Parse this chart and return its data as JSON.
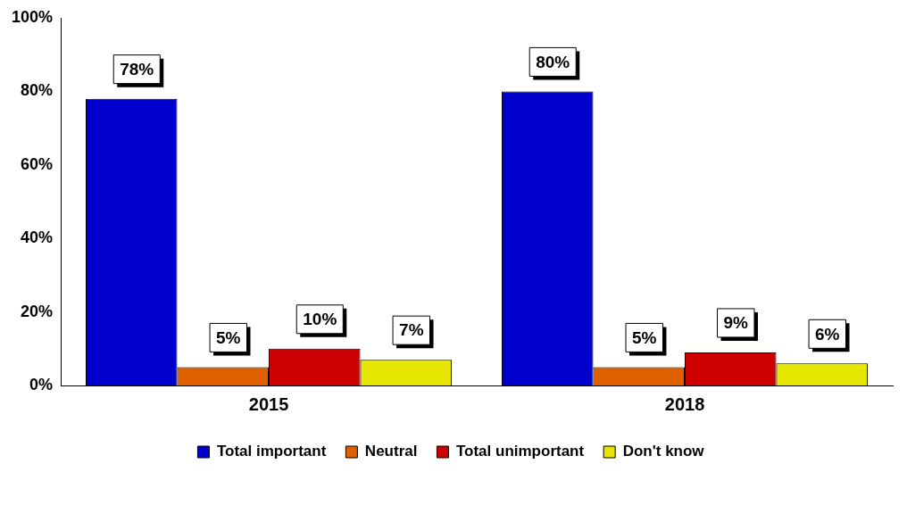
{
  "chart_data": {
    "type": "bar",
    "categories": [
      "2015",
      "2018"
    ],
    "series": [
      {
        "name": "Total important",
        "color": "#0000cc",
        "values": [
          78,
          80
        ],
        "value_labels": [
          "78%",
          "80%"
        ]
      },
      {
        "name": "Neutral",
        "color": "#e06000",
        "values": [
          5,
          5
        ],
        "value_labels": [
          "5%",
          "5%"
        ]
      },
      {
        "name": "Total unimportant",
        "color": "#cc0000",
        "values": [
          10,
          9
        ],
        "value_labels": [
          "10%",
          "9%"
        ]
      },
      {
        "name": "Don't know",
        "color": "#e6e600",
        "values": [
          7,
          6
        ],
        "value_labels": [
          "7%",
          "6%"
        ]
      }
    ],
    "ylim": [
      0,
      100
    ],
    "yticks": [
      {
        "value": 0,
        "label": "0%"
      },
      {
        "value": 20,
        "label": "20%"
      },
      {
        "value": 40,
        "label": "40%"
      },
      {
        "value": 60,
        "label": "60%"
      },
      {
        "value": 80,
        "label": "80%"
      },
      {
        "value": 100,
        "label": "100%"
      }
    ],
    "grid": false,
    "legend": "bottom"
  }
}
